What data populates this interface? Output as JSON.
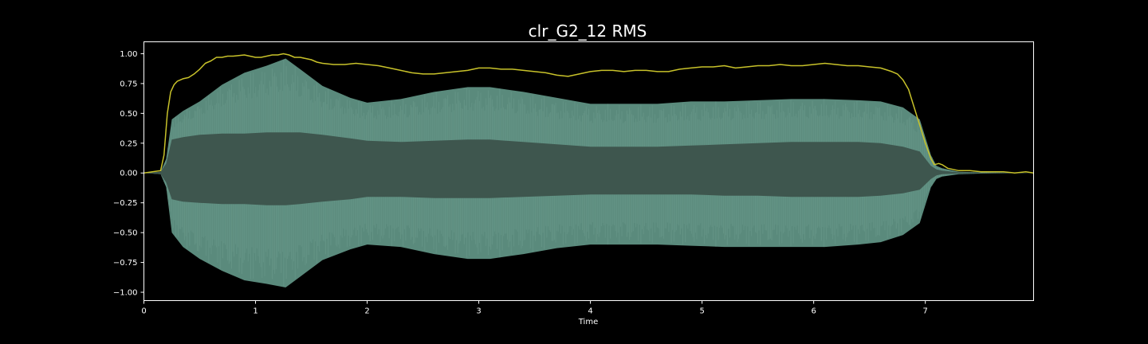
{
  "chart_data": {
    "type": "area",
    "title": "clr_G2_12 RMS",
    "xlabel": "Time",
    "ylabel": "",
    "xlim": [
      0,
      7.97
    ],
    "ylim": [
      -1.07,
      1.1
    ],
    "x_ticks": [
      0,
      1,
      2,
      3,
      4,
      5,
      6,
      7
    ],
    "x_tick_labels": [
      "0",
      "1",
      "2",
      "3",
      "4",
      "5",
      "6",
      "7"
    ],
    "y_ticks": [
      1.0,
      0.75,
      0.5,
      0.25,
      0.0,
      -0.25,
      -0.5,
      -0.75,
      -1.0
    ],
    "y_tick_labels": [
      "1.00",
      "0.75",
      "0.50",
      "0.25",
      "0.00",
      "−0.25",
      "−0.50",
      "−0.75",
      "−1.00"
    ],
    "grid": false,
    "background": "#000000",
    "series": [
      {
        "kind": "waveform-envelope",
        "color": "#5a8a7c",
        "core_color": "#3e564e",
        "x": [
          0.0,
          0.15,
          0.2,
          0.25,
          0.35,
          0.5,
          0.7,
          0.9,
          1.1,
          1.27,
          1.4,
          1.6,
          1.85,
          2.0,
          2.3,
          2.6,
          2.9,
          3.1,
          3.4,
          3.7,
          4.0,
          4.3,
          4.6,
          4.9,
          5.2,
          5.5,
          5.8,
          6.1,
          6.4,
          6.6,
          6.8,
          6.95,
          7.05,
          7.1,
          7.15,
          7.3,
          7.5,
          7.97
        ],
        "upper": [
          0.0,
          0.01,
          0.12,
          0.45,
          0.52,
          0.6,
          0.74,
          0.84,
          0.9,
          0.96,
          0.87,
          0.73,
          0.63,
          0.59,
          0.62,
          0.68,
          0.72,
          0.72,
          0.68,
          0.63,
          0.58,
          0.58,
          0.58,
          0.6,
          0.6,
          0.61,
          0.62,
          0.62,
          0.61,
          0.6,
          0.55,
          0.45,
          0.15,
          0.06,
          0.04,
          0.01,
          0.005,
          0.0
        ],
        "lower": [
          0.0,
          -0.01,
          -0.12,
          -0.5,
          -0.62,
          -0.72,
          -0.82,
          -0.9,
          -0.93,
          -0.96,
          -0.87,
          -0.73,
          -0.64,
          -0.6,
          -0.62,
          -0.68,
          -0.72,
          -0.72,
          -0.68,
          -0.63,
          -0.6,
          -0.6,
          -0.6,
          -0.61,
          -0.62,
          -0.62,
          -0.62,
          -0.62,
          -0.6,
          -0.58,
          -0.52,
          -0.42,
          -0.12,
          -0.05,
          -0.03,
          -0.01,
          -0.005,
          0.0
        ],
        "core_upper": [
          0.0,
          0.01,
          0.08,
          0.28,
          0.3,
          0.32,
          0.33,
          0.33,
          0.34,
          0.34,
          0.34,
          0.32,
          0.29,
          0.27,
          0.26,
          0.27,
          0.28,
          0.28,
          0.26,
          0.24,
          0.22,
          0.22,
          0.22,
          0.23,
          0.24,
          0.25,
          0.26,
          0.26,
          0.26,
          0.25,
          0.22,
          0.18,
          0.06,
          0.03,
          0.02,
          0.005,
          0.002,
          0.0
        ],
        "core_lower": [
          0.0,
          -0.01,
          -0.08,
          -0.22,
          -0.24,
          -0.25,
          -0.26,
          -0.26,
          -0.27,
          -0.27,
          -0.26,
          -0.24,
          -0.22,
          -0.2,
          -0.2,
          -0.21,
          -0.21,
          -0.21,
          -0.2,
          -0.19,
          -0.18,
          -0.18,
          -0.18,
          -0.18,
          -0.19,
          -0.19,
          -0.2,
          -0.2,
          -0.2,
          -0.19,
          -0.17,
          -0.14,
          -0.05,
          -0.02,
          -0.01,
          -0.005,
          -0.002,
          0.0
        ]
      },
      {
        "kind": "rms-line",
        "color": "#c8c22a",
        "x": [
          0.0,
          0.15,
          0.18,
          0.21,
          0.24,
          0.27,
          0.3,
          0.35,
          0.4,
          0.45,
          0.5,
          0.55,
          0.6,
          0.65,
          0.7,
          0.75,
          0.8,
          0.9,
          0.95,
          1.0,
          1.05,
          1.1,
          1.15,
          1.2,
          1.25,
          1.3,
          1.35,
          1.4,
          1.45,
          1.5,
          1.55,
          1.6,
          1.7,
          1.8,
          1.9,
          2.0,
          2.1,
          2.2,
          2.3,
          2.4,
          2.5,
          2.6,
          2.7,
          2.8,
          2.9,
          3.0,
          3.1,
          3.2,
          3.3,
          3.4,
          3.5,
          3.6,
          3.7,
          3.8,
          3.9,
          4.0,
          4.1,
          4.2,
          4.3,
          4.4,
          4.5,
          4.6,
          4.7,
          4.8,
          4.9,
          5.0,
          5.1,
          5.2,
          5.3,
          5.4,
          5.5,
          5.6,
          5.7,
          5.8,
          5.9,
          6.0,
          6.1,
          6.2,
          6.3,
          6.4,
          6.5,
          6.6,
          6.7,
          6.75,
          6.8,
          6.85,
          6.9,
          6.95,
          7.0,
          7.05,
          7.08,
          7.12,
          7.15,
          7.2,
          7.3,
          7.4,
          7.5,
          7.6,
          7.7,
          7.8,
          7.9,
          7.97
        ],
        "y": [
          0.0,
          0.02,
          0.15,
          0.5,
          0.68,
          0.74,
          0.77,
          0.79,
          0.8,
          0.83,
          0.87,
          0.92,
          0.94,
          0.97,
          0.97,
          0.98,
          0.98,
          0.99,
          0.98,
          0.97,
          0.97,
          0.98,
          0.99,
          0.99,
          1.0,
          0.99,
          0.97,
          0.97,
          0.96,
          0.95,
          0.93,
          0.92,
          0.91,
          0.91,
          0.92,
          0.91,
          0.9,
          0.88,
          0.86,
          0.84,
          0.83,
          0.83,
          0.84,
          0.85,
          0.86,
          0.88,
          0.88,
          0.87,
          0.87,
          0.86,
          0.85,
          0.84,
          0.82,
          0.81,
          0.83,
          0.85,
          0.86,
          0.86,
          0.85,
          0.86,
          0.86,
          0.85,
          0.85,
          0.87,
          0.88,
          0.89,
          0.89,
          0.9,
          0.88,
          0.89,
          0.9,
          0.9,
          0.91,
          0.9,
          0.9,
          0.91,
          0.92,
          0.91,
          0.9,
          0.9,
          0.89,
          0.88,
          0.85,
          0.83,
          0.78,
          0.7,
          0.55,
          0.4,
          0.25,
          0.12,
          0.07,
          0.08,
          0.07,
          0.04,
          0.02,
          0.02,
          0.01,
          0.01,
          0.01,
          0.0,
          0.01,
          0.0
        ]
      }
    ]
  }
}
